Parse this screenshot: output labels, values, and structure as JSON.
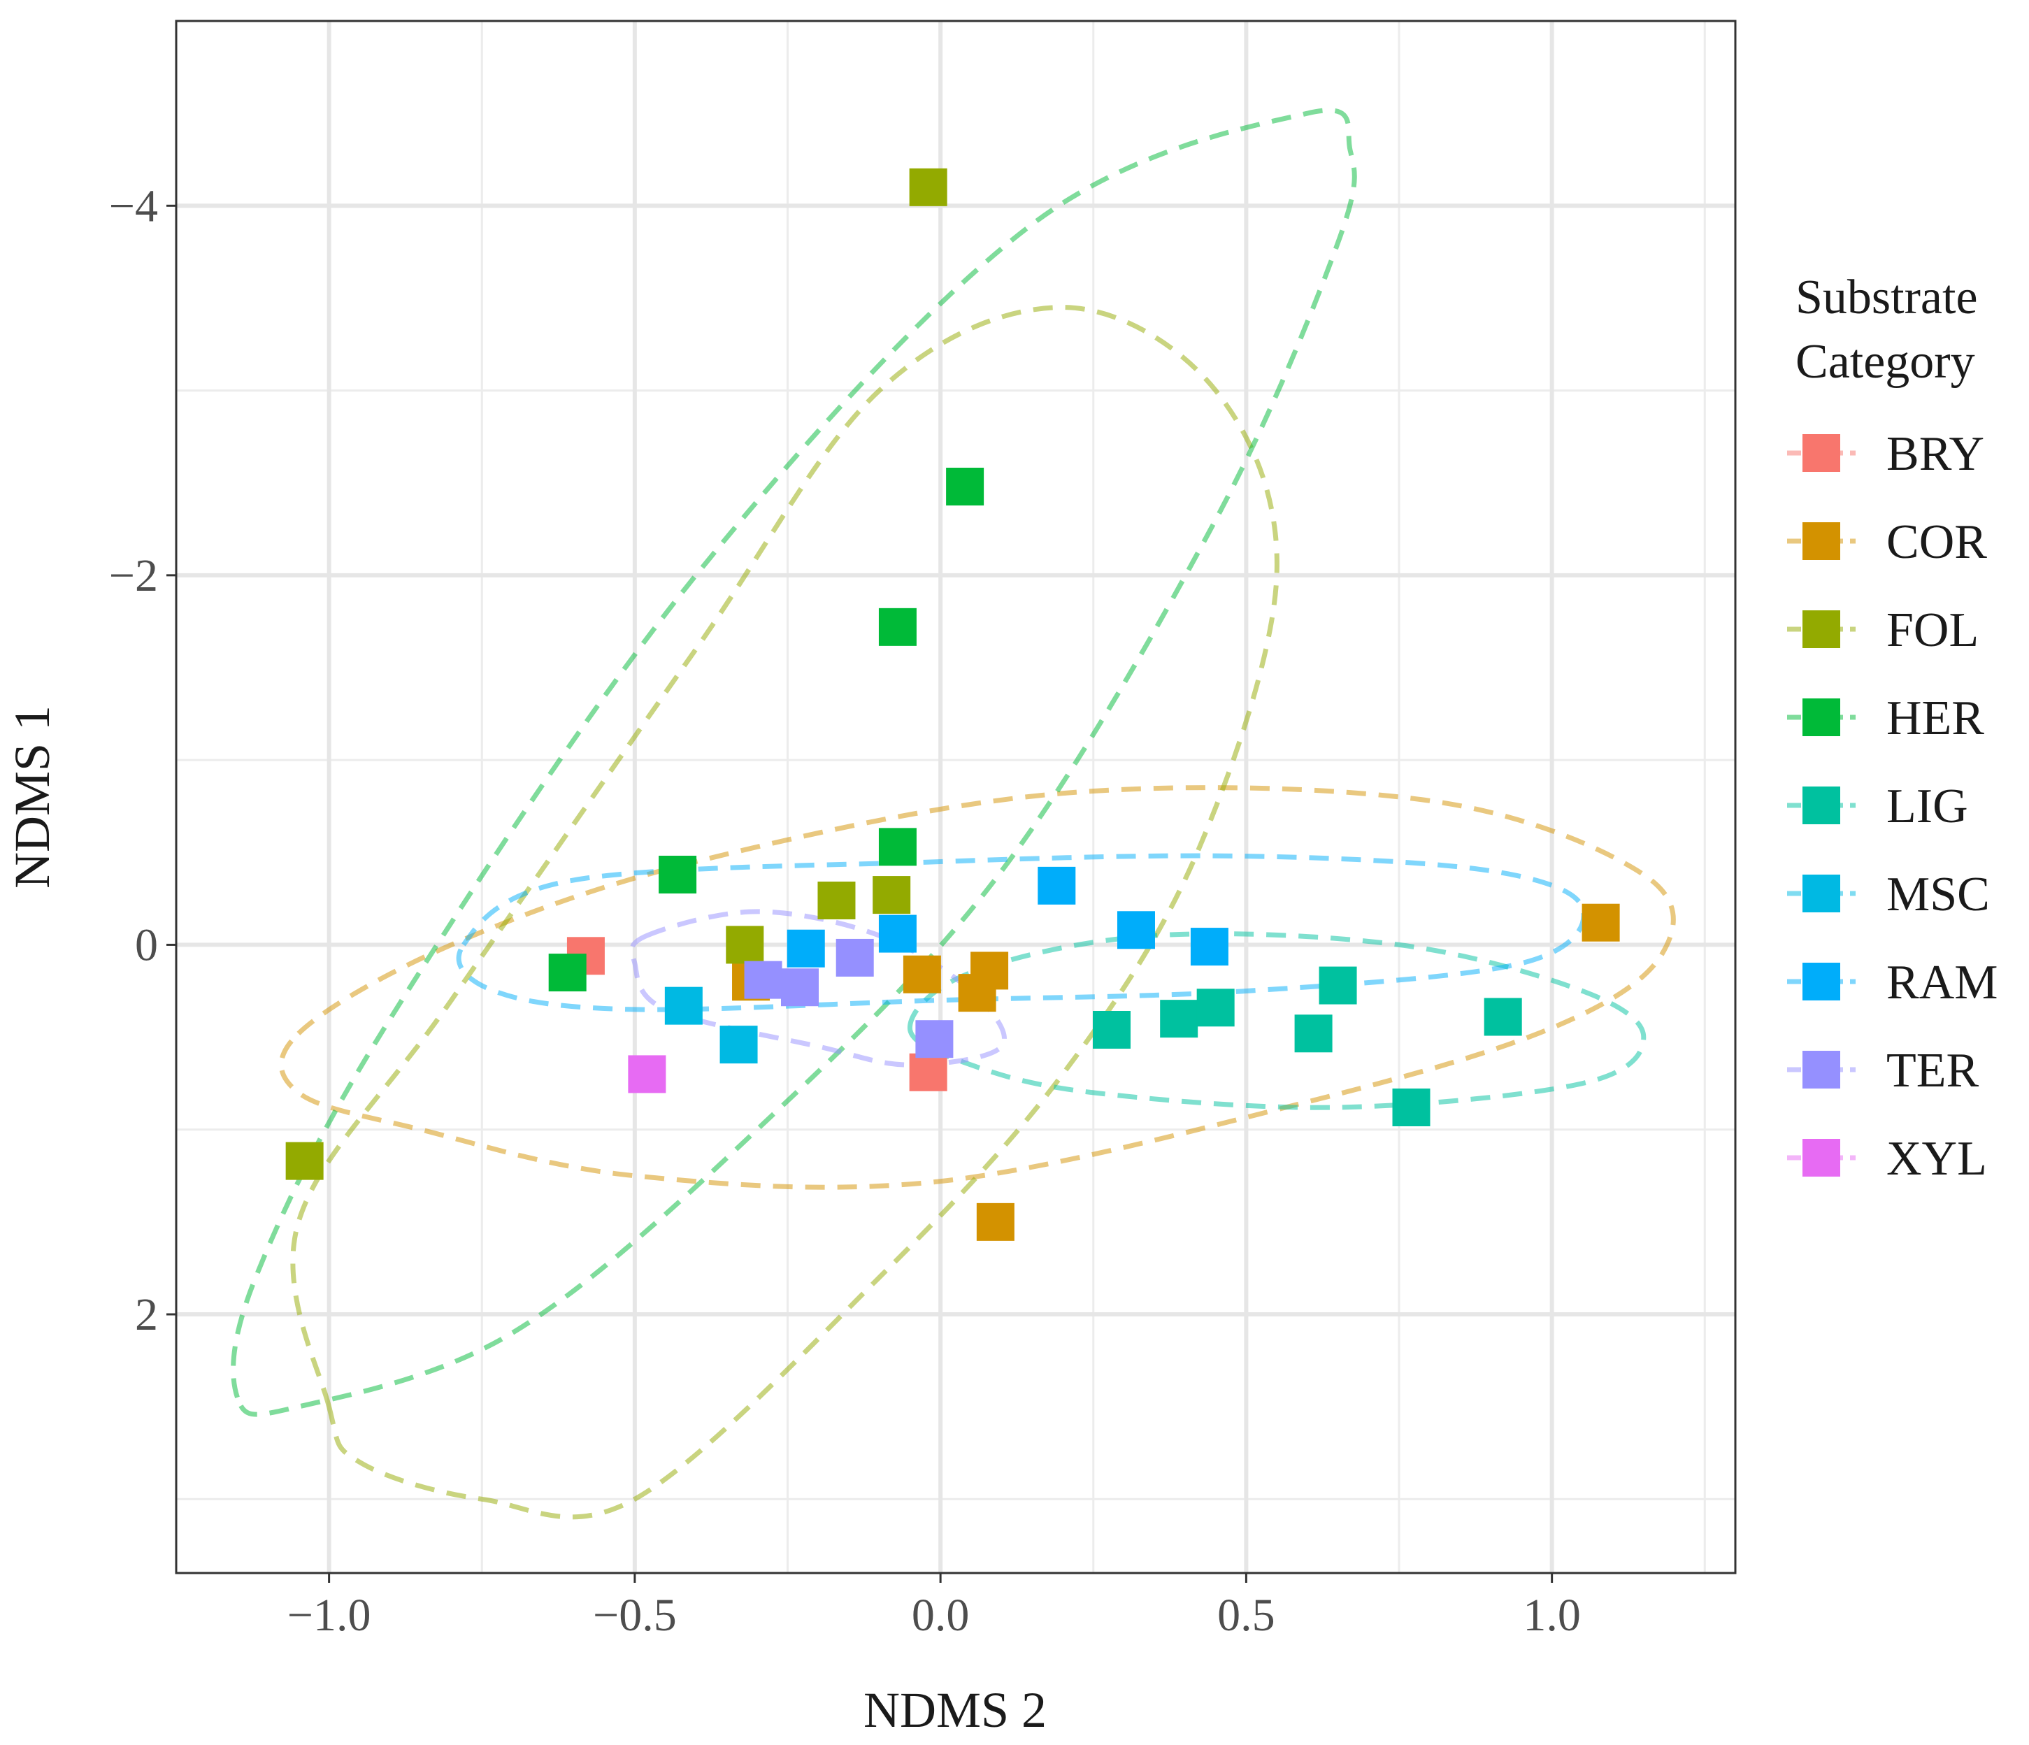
{
  "chart_data": {
    "type": "scatter",
    "title": "",
    "xlabel": "NDMS 2",
    "ylabel": "NDMS 1",
    "xlim": [
      -1.25,
      1.3
    ],
    "ylim": [
      -5.0,
      3.4
    ],
    "y_reversed": true,
    "x_ticks": [
      {
        "value": -1.0,
        "label": "−1.0"
      },
      {
        "value": -0.5,
        "label": "−0.5"
      },
      {
        "value": 0.0,
        "label": "0.0"
      },
      {
        "value": 0.5,
        "label": "0.5"
      },
      {
        "value": 1.0,
        "label": "1.0"
      }
    ],
    "y_ticks": [
      {
        "value": -4,
        "label": "−4"
      },
      {
        "value": -2,
        "label": "−2"
      },
      {
        "value": 0,
        "label": "0"
      },
      {
        "value": 2,
        "label": "2"
      }
    ],
    "legend": {
      "title_line1": "Substrate",
      "title_line2": "Category",
      "position": "right"
    },
    "series": [
      {
        "name": "BRY",
        "color": "#F8766D",
        "points": [
          [
            -0.58,
            0.06
          ],
          [
            -0.02,
            0.69
          ]
        ]
      },
      {
        "name": "COR",
        "color": "#D39200",
        "points": [
          [
            -0.31,
            0.2
          ],
          [
            -0.03,
            0.16
          ],
          [
            0.06,
            0.26
          ],
          [
            0.08,
            0.14
          ],
          [
            0.09,
            1.5
          ],
          [
            1.08,
            -0.12
          ]
        ],
        "ellipse": [
          [
            -1.05,
            0.48
          ],
          [
            -0.8,
            0.0
          ],
          [
            -0.4,
            -0.45
          ],
          [
            0.2,
            -0.82
          ],
          [
            0.8,
            -0.78
          ],
          [
            1.15,
            -0.38
          ],
          [
            1.18,
            0.05
          ],
          [
            1.0,
            0.45
          ],
          [
            0.6,
            0.85
          ],
          [
            0.0,
            1.28
          ],
          [
            -0.5,
            1.25
          ],
          [
            -0.85,
            1.0
          ],
          [
            -1.05,
            0.8
          ]
        ]
      },
      {
        "name": "FOL",
        "color": "#93AA00",
        "points": [
          [
            -0.02,
            -4.1
          ],
          [
            -0.17,
            -0.24
          ],
          [
            -0.08,
            -0.27
          ],
          [
            -0.32,
            0.0
          ],
          [
            -1.04,
            1.17
          ]
        ],
        "ellipse": [
          [
            -1.0,
            2.5
          ],
          [
            -1.05,
            1.5
          ],
          [
            -0.8,
            0.3
          ],
          [
            -0.4,
            -1.6
          ],
          [
            -0.1,
            -3.0
          ],
          [
            0.2,
            -3.45
          ],
          [
            0.45,
            -3.0
          ],
          [
            0.55,
            -2.0
          ],
          [
            0.42,
            -0.5
          ],
          [
            0.2,
            0.7
          ],
          [
            -0.1,
            1.8
          ],
          [
            -0.5,
            3.0
          ],
          [
            -0.75,
            3.0
          ],
          [
            -0.95,
            2.8
          ]
        ]
      },
      {
        "name": "HER",
        "color": "#00BA38",
        "points": [
          [
            0.04,
            -2.48
          ],
          [
            -0.07,
            -1.72
          ],
          [
            -0.07,
            -0.53
          ],
          [
            -0.43,
            -0.38
          ],
          [
            -0.61,
            0.15
          ]
        ],
        "ellipse": [
          [
            -1.15,
            2.45
          ],
          [
            -1.12,
            1.8
          ],
          [
            -0.9,
            0.4
          ],
          [
            -0.4,
            -2.0
          ],
          [
            0.15,
            -3.9
          ],
          [
            0.6,
            -4.5
          ],
          [
            0.67,
            -4.3
          ],
          [
            0.65,
            -3.8
          ],
          [
            0.45,
            -2.3
          ],
          [
            0.1,
            -0.4
          ],
          [
            -0.3,
            1.0
          ],
          [
            -0.7,
            2.1
          ],
          [
            -1.05,
            2.5
          ]
        ]
      },
      {
        "name": "LIG",
        "color": "#00C19F",
        "points": [
          [
            0.28,
            0.46
          ],
          [
            0.39,
            0.4
          ],
          [
            0.45,
            0.34
          ],
          [
            0.61,
            0.48
          ],
          [
            0.65,
            0.22
          ],
          [
            0.77,
            0.88
          ],
          [
            0.92,
            0.39
          ]
        ],
        "ellipse": [
          [
            -0.05,
            0.45
          ],
          [
            0.05,
            0.15
          ],
          [
            0.35,
            -0.05
          ],
          [
            0.75,
            0.0
          ],
          [
            1.05,
            0.25
          ],
          [
            1.15,
            0.5
          ],
          [
            1.05,
            0.75
          ],
          [
            0.65,
            0.88
          ],
          [
            0.25,
            0.8
          ],
          [
            0.05,
            0.65
          ]
        ]
      },
      {
        "name": "MSC",
        "color": "#00B9E3",
        "points": [
          [
            -0.42,
            0.33
          ],
          [
            -0.33,
            0.54
          ]
        ]
      },
      {
        "name": "RAM",
        "color": "#00ADFA",
        "points": [
          [
            -0.22,
            0.02
          ],
          [
            -0.07,
            -0.06
          ],
          [
            0.19,
            -0.32
          ],
          [
            0.32,
            -0.08
          ],
          [
            0.44,
            0.01
          ]
        ],
        "ellipse": [
          [
            -0.78,
            0.0
          ],
          [
            -0.6,
            -0.35
          ],
          [
            0.0,
            -0.45
          ],
          [
            0.5,
            -0.48
          ],
          [
            0.9,
            -0.4
          ],
          [
            1.05,
            -0.2
          ],
          [
            0.95,
            0.1
          ],
          [
            0.5,
            0.25
          ],
          [
            0.0,
            0.3
          ],
          [
            -0.5,
            0.35
          ],
          [
            -0.73,
            0.25
          ]
        ]
      },
      {
        "name": "TER",
        "color": "#9590FF",
        "points": [
          [
            -0.29,
            0.19
          ],
          [
            -0.23,
            0.23
          ],
          [
            -0.14,
            0.07
          ],
          [
            -0.01,
            0.51
          ]
        ],
        "ellipse": [
          [
            -0.48,
            -0.05
          ],
          [
            -0.3,
            -0.18
          ],
          [
            -0.1,
            -0.05
          ],
          [
            0.05,
            0.25
          ],
          [
            0.1,
            0.55
          ],
          [
            -0.05,
            0.65
          ],
          [
            -0.2,
            0.55
          ],
          [
            -0.45,
            0.35
          ],
          [
            -0.5,
            0.1
          ]
        ]
      },
      {
        "name": "XYL",
        "color": "#E76BF3",
        "points": [
          [
            -0.48,
            0.7
          ]
        ]
      }
    ]
  }
}
